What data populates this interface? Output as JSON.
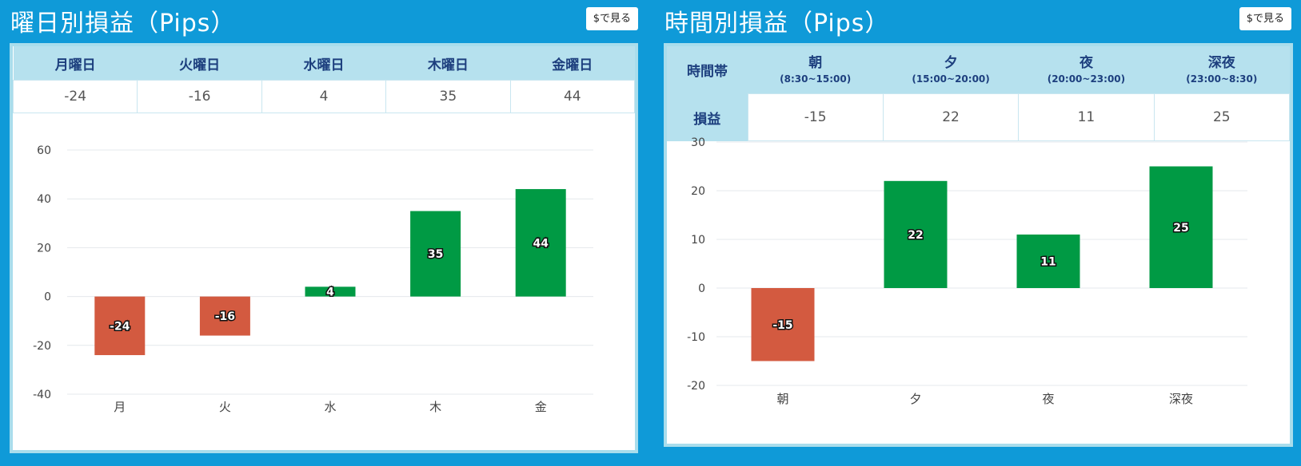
{
  "colors": {
    "positive": "#009a44",
    "negative": "#d35a40"
  },
  "day_panel": {
    "title": "曜日別損益（Pips）",
    "dollar_button": "$で見る",
    "headers": [
      "月曜日",
      "火曜日",
      "水曜日",
      "木曜日",
      "金曜日"
    ],
    "values": [
      "-24",
      "-16",
      "4",
      "35",
      "44"
    ]
  },
  "time_panel": {
    "title": "時間別損益（Pips）",
    "dollar_button": "$で見る",
    "row_header_time": "時間帯",
    "row_header_pl": "損益",
    "slots": [
      {
        "name": "朝",
        "range": "(8:30~15:00)"
      },
      {
        "name": "夕",
        "range": "(15:00~20:00)"
      },
      {
        "name": "夜",
        "range": "(20:00~23:00)"
      },
      {
        "name": "深夜",
        "range": "(23:00~8:30)"
      }
    ],
    "values": [
      "-15",
      "22",
      "11",
      "25"
    ]
  },
  "chart_data": [
    {
      "type": "bar",
      "categories": [
        "月",
        "火",
        "水",
        "木",
        "金"
      ],
      "values": [
        -24,
        -16,
        4,
        35,
        44
      ],
      "ylim": [
        -40,
        60
      ],
      "yticks": [
        60,
        40,
        20,
        0,
        -20,
        -40
      ],
      "grid": true
    },
    {
      "type": "bar",
      "categories": [
        "朝",
        "夕",
        "夜",
        "深夜"
      ],
      "values": [
        -15,
        22,
        11,
        25
      ],
      "ylim": [
        -20,
        30
      ],
      "yticks": [
        30,
        20,
        10,
        0,
        -10,
        -20
      ],
      "grid": true
    }
  ]
}
